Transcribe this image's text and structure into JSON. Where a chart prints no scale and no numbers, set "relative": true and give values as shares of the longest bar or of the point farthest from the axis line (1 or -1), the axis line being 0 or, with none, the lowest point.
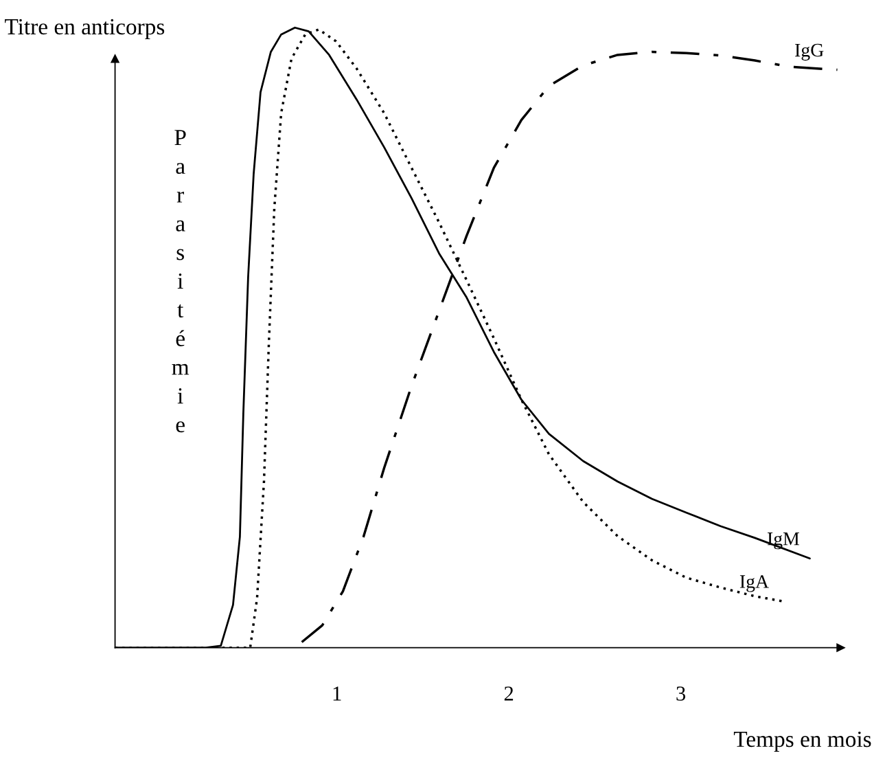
{
  "chart_data": {
    "type": "line",
    "relative": true,
    "xlabel": "Temps en mois",
    "ylabel": "Titre en anticorps",
    "annotations": [
      "Parasitémie"
    ],
    "xlim": [
      -0.29,
      3.93
    ],
    "xticks": [
      1,
      2,
      3
    ],
    "grid": false,
    "marker": "none",
    "series": [
      {
        "name": "IgM",
        "color": "#000000",
        "line_style": "solid",
        "x": [
          -0.29,
          0.237,
          0.325,
          0.396,
          0.436,
          0.456,
          0.484,
          0.516,
          0.556,
          0.616,
          0.676,
          0.756,
          0.836,
          0.955,
          1.115,
          1.275,
          1.434,
          1.594,
          1.754,
          1.913,
          2.073,
          2.233,
          2.432,
          2.632,
          2.832,
          3.031,
          3.231,
          3.431,
          3.75
        ],
        "values": [
          0,
          0,
          0.003,
          0.069,
          0.179,
          0.378,
          0.598,
          0.764,
          0.896,
          0.961,
          0.989,
          1,
          0.994,
          0.956,
          0.884,
          0.807,
          0.725,
          0.636,
          0.565,
          0.477,
          0.4,
          0.345,
          0.301,
          0.268,
          0.24,
          0.218,
          0.196,
          0.177,
          0.144
        ]
      },
      {
        "name": "IgA",
        "color": "#000000",
        "line_style": "dotted",
        "x": [
          -0.29,
          0.496,
          0.536,
          0.576,
          0.604,
          0.636,
          0.676,
          0.736,
          0.816,
          0.895,
          0.995,
          1.115,
          1.275,
          1.434,
          1.594,
          1.754,
          1.913,
          2.073,
          2.233,
          2.432,
          2.632,
          2.832,
          3.031,
          3.231,
          3.431,
          3.59
        ],
        "values": [
          0,
          0,
          0.08,
          0.268,
          0.488,
          0.708,
          0.862,
          0.95,
          0.989,
          0.997,
          0.978,
          0.934,
          0.862,
          0.774,
          0.686,
          0.593,
          0.499,
          0.4,
          0.312,
          0.235,
          0.18,
          0.141,
          0.113,
          0.097,
          0.083,
          0.075
        ]
      },
      {
        "name": "IgG",
        "color": "#000000",
        "line_style": "dashdot",
        "x": [
          0.796,
          0.915,
          1.035,
          1.155,
          1.275,
          1.434,
          1.594,
          1.754,
          1.913,
          2.073,
          2.233,
          2.432,
          2.632,
          2.832,
          3.031,
          3.231,
          3.431,
          3.63,
          3.91
        ],
        "values": [
          0.009,
          0.036,
          0.091,
          0.179,
          0.29,
          0.422,
          0.543,
          0.664,
          0.774,
          0.851,
          0.906,
          0.939,
          0.956,
          0.961,
          0.959,
          0.955,
          0.947,
          0.937,
          0.932
        ]
      }
    ]
  }
}
